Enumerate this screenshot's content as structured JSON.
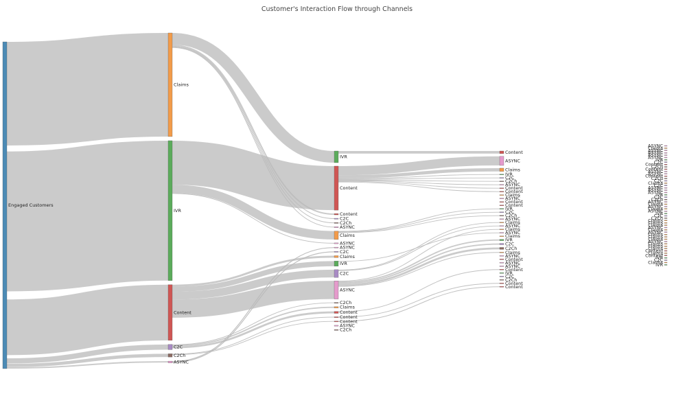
{
  "chart_data": {
    "type": "sankey",
    "title": "Customer's Interaction Flow through Channels",
    "colors": {
      "link": "#b9b9b9",
      "Engaged Customers": "#4c8bb5",
      "Claims": "#f29b4a",
      "IVR": "#5bab5b",
      "Content": "#cf5654",
      "C2C": "#a88bc4",
      "C2Ch": "#8c6b62",
      "ASYNC": "#e59bcc"
    },
    "nodes": [
      {
        "id": "root",
        "label": "Engaged Customers",
        "stage": 0
      },
      {
        "id": "s1_claims",
        "label": "Claims",
        "stage": 1
      },
      {
        "id": "s1_ivr",
        "label": "IVR",
        "stage": 1
      },
      {
        "id": "s1_content",
        "label": "Content",
        "stage": 1
      },
      {
        "id": "s1_c2c",
        "label": "C2C",
        "stage": 1
      },
      {
        "id": "s1_c2ch",
        "label": "C2Ch",
        "stage": 1
      },
      {
        "id": "s1_async",
        "label": "ASYNC",
        "stage": 1
      },
      {
        "id": "s2_ivr",
        "label": "IVR",
        "stage": 2
      },
      {
        "id": "s2_content",
        "label": "Content",
        "stage": 2
      },
      {
        "id": "s2_content_b",
        "label": "Content",
        "stage": 2
      },
      {
        "id": "s2_c2c_a",
        "label": "C2C",
        "stage": 2
      },
      {
        "id": "s2_c2ch_a",
        "label": "C2Ch",
        "stage": 2
      },
      {
        "id": "s2_async_a",
        "label": "ASYNC",
        "stage": 2
      },
      {
        "id": "s2_claims",
        "label": "Claims",
        "stage": 2
      },
      {
        "id": "s2_async_b",
        "label": "ASYNC",
        "stage": 2
      },
      {
        "id": "s2_async_c",
        "label": "ASYNC",
        "stage": 2
      },
      {
        "id": "s2_c2c_b",
        "label": "C2C",
        "stage": 2
      },
      {
        "id": "s2_claims_b",
        "label": "Claims",
        "stage": 2
      },
      {
        "id": "s2_ivr_b",
        "label": "IVR",
        "stage": 2
      },
      {
        "id": "s2_c2c",
        "label": "C2C",
        "stage": 2
      },
      {
        "id": "s2_async",
        "label": "ASYNC",
        "stage": 2
      },
      {
        "id": "s2_c2ch_b",
        "label": "C2Ch",
        "stage": 2
      },
      {
        "id": "s2_claims_c",
        "label": "Claims",
        "stage": 2
      },
      {
        "id": "s2_content_c",
        "label": "Content",
        "stage": 2
      },
      {
        "id": "s2_content_d",
        "label": "Content",
        "stage": 2
      },
      {
        "id": "s2_content_e",
        "label": "Content",
        "stage": 2
      },
      {
        "id": "s2_async_d",
        "label": "ASYNC",
        "stage": 2
      },
      {
        "id": "s2_c2ch_c",
        "label": "C2Ch",
        "stage": 2
      },
      {
        "id": "s3_content_a",
        "label": "Content",
        "stage": 3
      },
      {
        "id": "s3_async",
        "label": "ASYNC",
        "stage": 3
      },
      {
        "id": "s3_claims_a",
        "label": "Claims",
        "stage": 3
      },
      {
        "id": "s3_ivr_a",
        "label": "IVR",
        "stage": 3
      },
      {
        "id": "s3_c2c_a",
        "label": "C2C",
        "stage": 3
      },
      {
        "id": "s3_c2ch_a",
        "label": "C2Ch",
        "stage": 3
      },
      {
        "id": "s3_async_a",
        "label": "ASYNC",
        "stage": 3
      },
      {
        "id": "s3_content_b",
        "label": "Content",
        "stage": 3
      },
      {
        "id": "s3_content_c",
        "label": "Content",
        "stage": 3
      },
      {
        "id": "s3_claims_b",
        "label": "Claims",
        "stage": 3
      },
      {
        "id": "s3_async_b",
        "label": "ASYNC",
        "stage": 3
      },
      {
        "id": "s3_content_d",
        "label": "Content",
        "stage": 3
      },
      {
        "id": "s3_content_e",
        "label": "Content",
        "stage": 3
      },
      {
        "id": "s3_ivr_b",
        "label": "IVR",
        "stage": 3
      },
      {
        "id": "s3_c2c_b",
        "label": "C2C",
        "stage": 3
      },
      {
        "id": "s3_c2ch_b",
        "label": "C2Ch",
        "stage": 3
      },
      {
        "id": "s3_async_c",
        "label": "ASYNC",
        "stage": 3
      },
      {
        "id": "s3_claims_c",
        "label": "Claims",
        "stage": 3
      },
      {
        "id": "s3_async_d",
        "label": "ASYNC",
        "stage": 3
      },
      {
        "id": "s3_claims_d",
        "label": "Claims",
        "stage": 3
      },
      {
        "id": "s3_async_e",
        "label": "ASYNC",
        "stage": 3
      },
      {
        "id": "s3_claims_e",
        "label": "Claims",
        "stage": 3
      },
      {
        "id": "s3_ivr_c",
        "label": "IVR",
        "stage": 3
      },
      {
        "id": "s3_c2c_c",
        "label": "C2C",
        "stage": 3
      },
      {
        "id": "s3_c2ch_c",
        "label": "C2Ch",
        "stage": 3
      },
      {
        "id": "s3_claims_f",
        "label": "Claims",
        "stage": 3
      },
      {
        "id": "s3_async_f",
        "label": "ASYNC",
        "stage": 3
      },
      {
        "id": "s3_content_f",
        "label": "Content",
        "stage": 3
      },
      {
        "id": "s3_async_g",
        "label": "ASYNC",
        "stage": 3
      },
      {
        "id": "s3_async_h",
        "label": "ASYNC",
        "stage": 3
      },
      {
        "id": "s3_content_g",
        "label": "Content",
        "stage": 3
      },
      {
        "id": "s3_ivr_d",
        "label": "IVR",
        "stage": 3
      },
      {
        "id": "s3_c2c_d",
        "label": "C2C",
        "stage": 3
      },
      {
        "id": "s3_c2ch_d",
        "label": "C2Ch",
        "stage": 3
      },
      {
        "id": "s3_content_h",
        "label": "Content",
        "stage": 3
      },
      {
        "id": "s3_content_i",
        "label": "Content",
        "stage": 3
      },
      {
        "id": "s4_0",
        "label": "ASYNC",
        "stage": 4
      },
      {
        "id": "s4_1",
        "label": "Claims",
        "stage": 4
      },
      {
        "id": "s4_2",
        "label": "ASYNC",
        "stage": 4
      },
      {
        "id": "s4_3",
        "label": "ASYNC",
        "stage": 4
      },
      {
        "id": "s4_4",
        "label": "ASYNC",
        "stage": 4
      },
      {
        "id": "s4_5",
        "label": "ASYNC",
        "stage": 4
      },
      {
        "id": "s4_6",
        "label": "IVR",
        "stage": 4
      },
      {
        "id": "s4_7",
        "label": "C2C",
        "stage": 4
      },
      {
        "id": "s4_8",
        "label": "Content",
        "stage": 4
      },
      {
        "id": "s4_9",
        "label": "C2Ch",
        "stage": 4
      },
      {
        "id": "s4_10",
        "label": "Content",
        "stage": 4
      },
      {
        "id": "s4_11",
        "label": "ASYNC",
        "stage": 4
      },
      {
        "id": "s4_12",
        "label": "ASYNC",
        "stage": 4
      },
      {
        "id": "s4_13",
        "label": "Content",
        "stage": 4
      },
      {
        "id": "s4_14",
        "label": "C2Ch",
        "stage": 4
      },
      {
        "id": "s4_15",
        "label": "C2C",
        "stage": 4
      },
      {
        "id": "s4_16",
        "label": "Claims",
        "stage": 4
      },
      {
        "id": "s4_17",
        "label": "C2C",
        "stage": 4
      },
      {
        "id": "s4_18",
        "label": "ASYNC",
        "stage": 4
      },
      {
        "id": "s4_19",
        "label": "ASYNC",
        "stage": 4
      },
      {
        "id": "s4_20",
        "label": "ASYNC",
        "stage": 4
      },
      {
        "id": "s4_21",
        "label": "IVR",
        "stage": 4
      },
      {
        "id": "s4_22",
        "label": "C2C",
        "stage": 4
      },
      {
        "id": "s4_23",
        "label": "C2Ch",
        "stage": 4
      },
      {
        "id": "s4_24",
        "label": "ASYNC",
        "stage": 4
      },
      {
        "id": "s4_25",
        "label": "Claims",
        "stage": 4
      },
      {
        "id": "s4_26",
        "label": "ASYNC",
        "stage": 4
      },
      {
        "id": "s4_27",
        "label": "Claims",
        "stage": 4
      },
      {
        "id": "s4_28",
        "label": "ASYNC",
        "stage": 4
      },
      {
        "id": "s4_29",
        "label": "IVR",
        "stage": 4
      },
      {
        "id": "s4_30",
        "label": "C2C",
        "stage": 4
      },
      {
        "id": "s4_31",
        "label": "C2Ch",
        "stage": 4
      },
      {
        "id": "s4_32",
        "label": "Claims",
        "stage": 4
      },
      {
        "id": "s4_33",
        "label": "Claims",
        "stage": 4
      },
      {
        "id": "s4_34",
        "label": "Claims",
        "stage": 4
      },
      {
        "id": "s4_35",
        "label": "ASYNC",
        "stage": 4
      },
      {
        "id": "s4_36",
        "label": "Claims",
        "stage": 4
      },
      {
        "id": "s4_37",
        "label": "ASYNC",
        "stage": 4
      },
      {
        "id": "s4_38",
        "label": "Claims",
        "stage": 4
      },
      {
        "id": "s4_39",
        "label": "Claims",
        "stage": 4
      },
      {
        "id": "s4_40",
        "label": "Claims",
        "stage": 4
      },
      {
        "id": "s4_41",
        "label": "ASYNC",
        "stage": 4
      },
      {
        "id": "s4_42",
        "label": "Claims",
        "stage": 4
      },
      {
        "id": "s4_43",
        "label": "Claims",
        "stage": 4
      },
      {
        "id": "s4_44",
        "label": "Claims",
        "stage": 4
      },
      {
        "id": "s4_45",
        "label": "Content",
        "stage": 4
      },
      {
        "id": "s4_46",
        "label": "Claims",
        "stage": 4
      },
      {
        "id": "s4_47",
        "label": "Content",
        "stage": 4
      },
      {
        "id": "s4_48",
        "label": "IVR",
        "stage": 4
      },
      {
        "id": "s4_49",
        "label": "C2C",
        "stage": 4
      },
      {
        "id": "s4_50",
        "label": "Claims",
        "stage": 4
      },
      {
        "id": "s4_51",
        "label": "IVR",
        "stage": 4
      }
    ],
    "links": [
      {
        "source": "root",
        "target": "s1_claims",
        "value": 160
      },
      {
        "source": "root",
        "target": "s1_ivr",
        "value": 216
      },
      {
        "source": "root",
        "target": "s1_content",
        "value": 86
      },
      {
        "source": "root",
        "target": "s1_c2c",
        "value": 8
      },
      {
        "source": "root",
        "target": "s1_c2ch",
        "value": 5
      },
      {
        "source": "root",
        "target": "s1_async",
        "value": 2
      },
      {
        "source": "s1_claims",
        "target": "s2_ivr",
        "value": 18
      },
      {
        "source": "s1_claims",
        "target": "s2_content_b",
        "value": 2
      },
      {
        "source": "s1_claims",
        "target": "s2_c2c_a",
        "value": 1
      },
      {
        "source": "s1_claims",
        "target": "s2_c2ch_a",
        "value": 1
      },
      {
        "source": "s1_claims",
        "target": "s2_async_a",
        "value": 1
      },
      {
        "source": "s1_ivr",
        "target": "s2_content",
        "value": 68
      },
      {
        "source": "s1_ivr",
        "target": "s2_claims",
        "value": 13
      },
      {
        "source": "s1_ivr",
        "target": "s2_async_b",
        "value": 1
      },
      {
        "source": "s1_content",
        "target": "s2_claims_b",
        "value": 3
      },
      {
        "source": "s1_content",
        "target": "s2_ivr_b",
        "value": 8
      },
      {
        "source": "s1_content",
        "target": "s2_c2c",
        "value": 12
      },
      {
        "source": "s1_content",
        "target": "s2_async",
        "value": 28
      },
      {
        "source": "s1_c2c",
        "target": "s2_c2ch_b",
        "value": 1
      },
      {
        "source": "s1_c2c",
        "target": "s2_claims_c",
        "value": 2
      },
      {
        "source": "s1_c2c",
        "target": "s2_content_c",
        "value": 3
      },
      {
        "source": "s1_c2ch",
        "target": "s2_content_d",
        "value": 1
      },
      {
        "source": "s1_c2ch",
        "target": "s2_content_e",
        "value": 1
      },
      {
        "source": "s1_async",
        "target": "s2_async_c",
        "value": 1
      },
      {
        "source": "s1_async",
        "target": "s2_c2c_b",
        "value": 1
      },
      {
        "source": "s2_ivr",
        "target": "s3_content_a",
        "value": 4
      },
      {
        "source": "s2_content",
        "target": "s3_async",
        "value": 14
      },
      {
        "source": "s2_content",
        "target": "s3_claims_a",
        "value": 5
      },
      {
        "source": "s2_content",
        "target": "s3_ivr_a",
        "value": 1
      },
      {
        "source": "s2_content",
        "target": "s3_c2c_a",
        "value": 1
      },
      {
        "source": "s2_content",
        "target": "s3_c2ch_a",
        "value": 1
      },
      {
        "source": "s2_content",
        "target": "s3_async_a",
        "value": 1
      },
      {
        "source": "s2_content",
        "target": "s3_content_b",
        "value": 1
      },
      {
        "source": "s2_content",
        "target": "s3_content_c",
        "value": 1
      },
      {
        "source": "s2_claims",
        "target": "s3_ivr_b",
        "value": 1
      },
      {
        "source": "s2_claims",
        "target": "s3_c2c_b",
        "value": 1
      },
      {
        "source": "s2_claims",
        "target": "s3_c2ch_b",
        "value": 1
      },
      {
        "source": "s2_async",
        "target": "s3_claims_d",
        "value": 1
      },
      {
        "source": "s2_async",
        "target": "s3_ivr_c",
        "value": 2
      },
      {
        "source": "s2_async",
        "target": "s3_c2c_c",
        "value": 2
      },
      {
        "source": "s2_async",
        "target": "s3_c2ch_c",
        "value": 3
      },
      {
        "source": "s2_async",
        "target": "s3_claims_f",
        "value": 1
      },
      {
        "source": "s2_c2c",
        "target": "s3_claims_c",
        "value": 1
      },
      {
        "source": "s2_c2c",
        "target": "s3_async_d",
        "value": 1
      },
      {
        "source": "s2_ivr_b",
        "target": "s3_async_e",
        "value": 1
      },
      {
        "source": "s2_content_c",
        "target": "s3_content_g",
        "value": 1
      },
      {
        "source": "s2_content_d",
        "target": "s3_content_h",
        "value": 1
      },
      {
        "source": "s2_content_e",
        "target": "s3_content_i",
        "value": 1
      }
    ]
  }
}
